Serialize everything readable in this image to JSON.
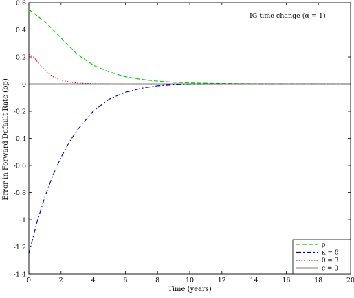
{
  "chart_data": {
    "type": "line",
    "title": "",
    "xlabel": "Time (years)",
    "ylabel": "Error in Forward Default Rate (bp)",
    "xlim": [
      0,
      20
    ],
    "ylim": [
      -1.4,
      0.6
    ],
    "xticks": [
      "0",
      "2",
      "4",
      "6",
      "8",
      "10",
      "12",
      "14",
      "16",
      "18",
      "20"
    ],
    "yticks": [
      "0.6",
      "0.4",
      "0.2",
      "0",
      "-0.2",
      "-0.4",
      "-0.6",
      "-0.8",
      "-1",
      "-1.2",
      "-1.4"
    ],
    "annotation": "IG time change (α = 1)",
    "grid": false,
    "legend_position": "bottom-right",
    "series": [
      {
        "name": "ρ",
        "color": "#00cc00",
        "dash": "dashed",
        "x": [
          0,
          1,
          2,
          3,
          4,
          5,
          6,
          7,
          8,
          9,
          10,
          12,
          14,
          16,
          18,
          20
        ],
        "y": [
          0.55,
          0.46,
          0.34,
          0.22,
          0.14,
          0.09,
          0.055,
          0.035,
          0.022,
          0.014,
          0.009,
          0.004,
          0.002,
          0.001,
          0.0005,
          0.0002
        ]
      },
      {
        "name": "κ = δ",
        "color": "#0000cc",
        "dash": "dashdot",
        "x": [
          0,
          0.5,
          1,
          1.5,
          2,
          2.5,
          3,
          4,
          5,
          6,
          7,
          8,
          9,
          10,
          12,
          14,
          16,
          18,
          20
        ],
        "y": [
          -1.25,
          -1.02,
          -0.83,
          -0.67,
          -0.54,
          -0.43,
          -0.34,
          -0.2,
          -0.11,
          -0.06,
          -0.03,
          -0.012,
          -0.005,
          -0.002,
          0,
          0,
          0,
          0,
          0
        ]
      },
      {
        "name": "θ = 3",
        "color": "#dd0000",
        "dash": "dotted",
        "x": [
          0,
          0.3,
          0.6,
          1,
          1.5,
          2,
          2.5,
          3,
          4,
          5,
          6,
          8,
          10,
          20
        ],
        "y": [
          0.22,
          0.2,
          0.155,
          0.1,
          0.055,
          0.03,
          0.016,
          0.008,
          0.002,
          0.0005,
          0,
          0,
          0,
          0
        ]
      },
      {
        "name": "c = 0",
        "color": "#000000",
        "dash": "solid",
        "x": [
          0,
          20
        ],
        "y": [
          0,
          0
        ]
      }
    ]
  }
}
